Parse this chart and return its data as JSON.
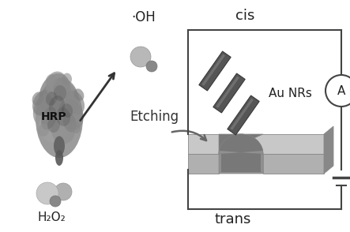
{
  "background_color": "#ffffff",
  "text_HRP": "HRP",
  "text_H2O2": "H₂O₂",
  "text_OH": "·OH",
  "text_etching": "Etching",
  "text_AuNRs": "Au NRs",
  "text_cis": "cis",
  "text_trans": "trans",
  "text_A": "A",
  "arrow_color": "#555555",
  "chip_top_color": "#c8c8c8",
  "chip_face_color": "#b0b0b0",
  "chip_side_color": "#888888",
  "chip_dark_color": "#787878",
  "nanrod_color": "#555555",
  "nanrod_highlight": "#888888",
  "circuit_color": "#444444",
  "figsize": [
    4.43,
    2.94
  ],
  "dpi": 100
}
